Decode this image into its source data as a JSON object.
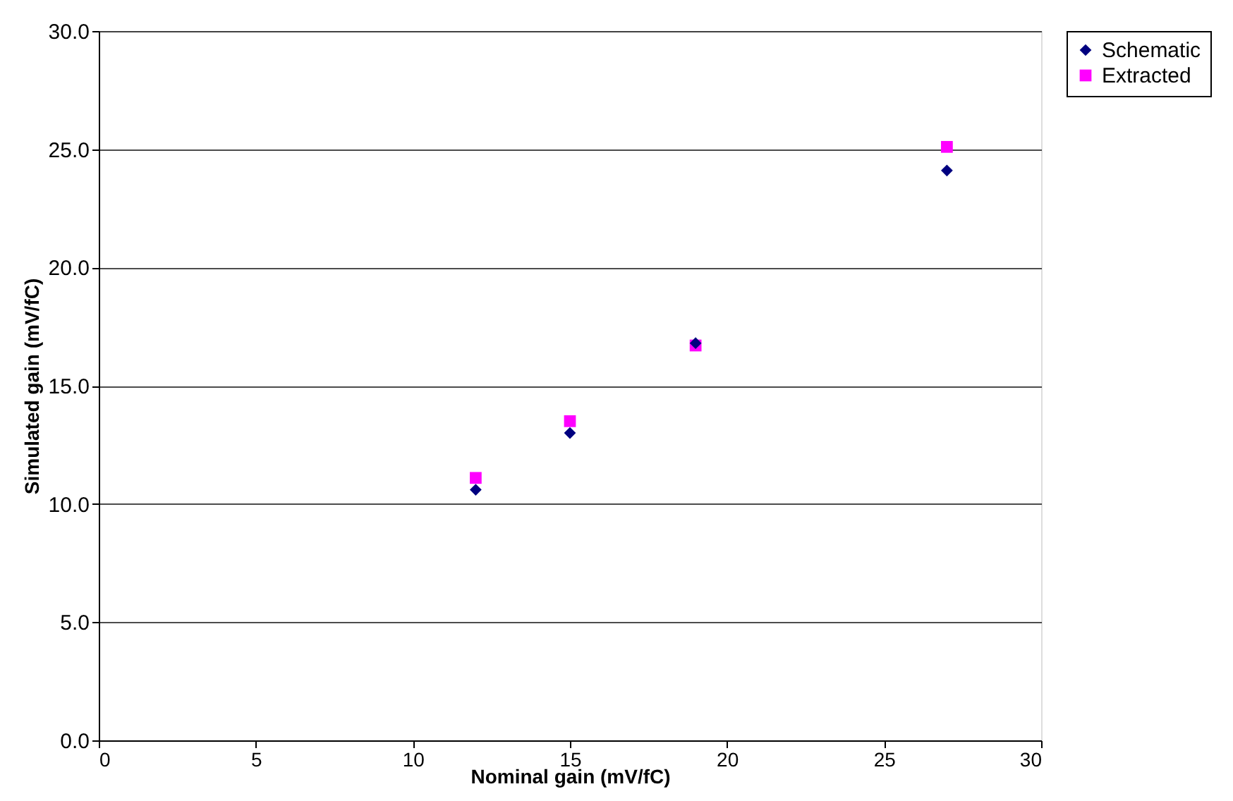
{
  "chart_data": {
    "type": "scatter",
    "xlabel": "Nominal gain (mV/fC)",
    "ylabel": "Simulated gain (mV/fC)",
    "x": [
      12,
      15,
      19,
      27
    ],
    "series": [
      {
        "name": "Schematic",
        "color": "#000080",
        "marker": "diamond",
        "values": [
          10.6,
          13.0,
          16.8,
          24.1
        ]
      },
      {
        "name": "Extracted",
        "color": "#ff00ff",
        "marker": "square",
        "values": [
          11.1,
          13.5,
          16.7,
          25.1
        ]
      }
    ],
    "xlim": [
      0,
      30
    ],
    "xticks": [
      0,
      5,
      10,
      15,
      20,
      25,
      30
    ],
    "ylim": [
      0,
      30
    ],
    "yticks": [
      {
        "value": 0,
        "label": "0.0"
      },
      {
        "value": 5,
        "label": "5.0"
      },
      {
        "value": 10,
        "label": "10.0"
      },
      {
        "value": 15,
        "label": "15.0"
      },
      {
        "value": 20,
        "label": "20.0"
      },
      {
        "value": 25,
        "label": "25.0"
      },
      {
        "value": 30,
        "label": "30.0"
      }
    ],
    "grid": "y",
    "legend": "right"
  }
}
